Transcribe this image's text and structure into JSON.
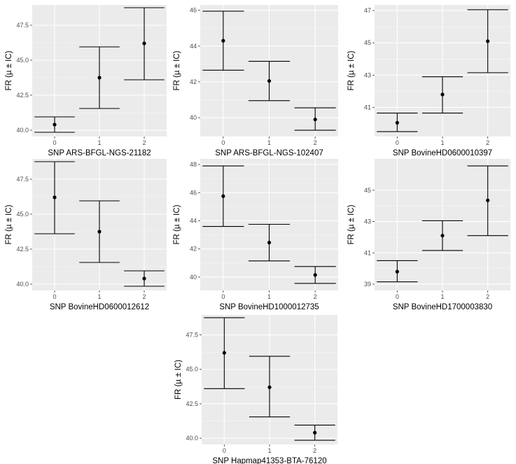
{
  "figure": {
    "colors": {
      "panel_bg": "#ebebeb",
      "grid_major": "#ffffff",
      "grid_minor": "#f5f5f5",
      "ink": "#000000",
      "tick_label": "#4d4d4d"
    }
  },
  "chart_data": [
    {
      "type": "errorbar",
      "xlabel": "SNP ARS-BFGL-NGS-21182",
      "ylabel": "FR (µ ± IC)",
      "categories": [
        "0",
        "1",
        "2"
      ],
      "y_ticks": [
        40.0,
        42.5,
        45.0,
        47.5
      ],
      "y_tick_labels": [
        "40.0",
        "42.5",
        "45.0",
        "47.5"
      ],
      "ylim": [
        39.55,
        48.95
      ],
      "points": [
        {
          "x": "0",
          "mean": 40.4,
          "low": 39.85,
          "high": 40.95
        },
        {
          "x": "1",
          "mean": 43.75,
          "low": 41.55,
          "high": 45.95
        },
        {
          "x": "2",
          "mean": 46.2,
          "low": 43.6,
          "high": 48.75
        }
      ]
    },
    {
      "type": "errorbar",
      "xlabel": "SNP ARS-BFGL-NGS-102407",
      "ylabel": "FR (µ ± IC)",
      "categories": [
        "0",
        "1",
        "2"
      ],
      "y_ticks": [
        40,
        42,
        44,
        46
      ],
      "y_tick_labels": [
        "40",
        "42",
        "44",
        "46"
      ],
      "ylim": [
        38.95,
        46.3
      ],
      "points": [
        {
          "x": "0",
          "mean": 44.3,
          "low": 42.65,
          "high": 45.95
        },
        {
          "x": "1",
          "mean": 42.05,
          "low": 40.95,
          "high": 43.15
        },
        {
          "x": "2",
          "mean": 39.9,
          "low": 39.3,
          "high": 40.55
        }
      ]
    },
    {
      "type": "errorbar",
      "xlabel": "SNP BovineHD0600010397",
      "ylabel": "FR (µ ± IC)",
      "categories": [
        "0",
        "1",
        "2"
      ],
      "y_ticks": [
        41,
        43,
        45,
        47
      ],
      "y_tick_labels": [
        "41",
        "43",
        "45",
        "47"
      ],
      "ylim": [
        39.2,
        47.35
      ],
      "points": [
        {
          "x": "0",
          "mean": 40.05,
          "low": 39.5,
          "high": 40.65
        },
        {
          "x": "1",
          "mean": 41.8,
          "low": 40.65,
          "high": 42.9
        },
        {
          "x": "2",
          "mean": 45.1,
          "low": 43.15,
          "high": 47.05
        }
      ]
    },
    {
      "type": "errorbar",
      "xlabel": "SNP BovineHD0600012612",
      "ylabel": "FR (µ ± IC)",
      "categories": [
        "0",
        "1",
        "2"
      ],
      "y_ticks": [
        40.0,
        42.5,
        45.0,
        47.5
      ],
      "y_tick_labels": [
        "40.0",
        "42.5",
        "45.0",
        "47.5"
      ],
      "ylim": [
        39.55,
        48.95
      ],
      "points": [
        {
          "x": "0",
          "mean": 46.2,
          "low": 43.6,
          "high": 48.75
        },
        {
          "x": "1",
          "mean": 43.75,
          "low": 41.55,
          "high": 45.95
        },
        {
          "x": "2",
          "mean": 40.4,
          "low": 39.85,
          "high": 40.95
        }
      ]
    },
    {
      "type": "errorbar",
      "xlabel": "SNP BovineHD1000012735",
      "ylabel": "FR (µ ± IC)",
      "categories": [
        "0",
        "1",
        "2"
      ],
      "y_ticks": [
        40,
        42,
        44,
        46,
        48
      ],
      "y_tick_labels": [
        "40",
        "42",
        "44",
        "46",
        "48"
      ],
      "ylim": [
        39.05,
        48.4
      ],
      "points": [
        {
          "x": "0",
          "mean": 45.75,
          "low": 43.6,
          "high": 47.9
        },
        {
          "x": "1",
          "mean": 42.45,
          "low": 41.15,
          "high": 43.75
        },
        {
          "x": "2",
          "mean": 40.15,
          "low": 39.55,
          "high": 40.75
        }
      ]
    },
    {
      "type": "errorbar",
      "xlabel": "SNP BovineHD1700003830",
      "ylabel": "FR (µ ± IC)",
      "categories": [
        "0",
        "1",
        "2"
      ],
      "y_ticks": [
        39,
        41,
        43,
        45
      ],
      "y_tick_labels": [
        "39",
        "41",
        "43",
        "45"
      ],
      "ylim": [
        38.6,
        47.0
      ],
      "points": [
        {
          "x": "0",
          "mean": 39.8,
          "low": 39.15,
          "high": 40.5
        },
        {
          "x": "1",
          "mean": 42.1,
          "low": 41.15,
          "high": 43.05
        },
        {
          "x": "2",
          "mean": 44.35,
          "low": 42.1,
          "high": 46.55
        }
      ]
    },
    {
      "type": "errorbar",
      "xlabel": "SNP Hapmap41353-BTA-76120",
      "ylabel": "FR (µ ± IC)",
      "categories": [
        "0",
        "1",
        "2"
      ],
      "y_ticks": [
        40.0,
        42.5,
        45.0,
        47.5
      ],
      "y_tick_labels": [
        "40.0",
        "42.5",
        "45.0",
        "47.5"
      ],
      "ylim": [
        39.55,
        48.95
      ],
      "points": [
        {
          "x": "0",
          "mean": 46.2,
          "low": 43.6,
          "high": 48.75
        },
        {
          "x": "1",
          "mean": 43.7,
          "low": 41.55,
          "high": 45.95
        },
        {
          "x": "2",
          "mean": 40.4,
          "low": 39.85,
          "high": 40.95
        }
      ]
    }
  ]
}
